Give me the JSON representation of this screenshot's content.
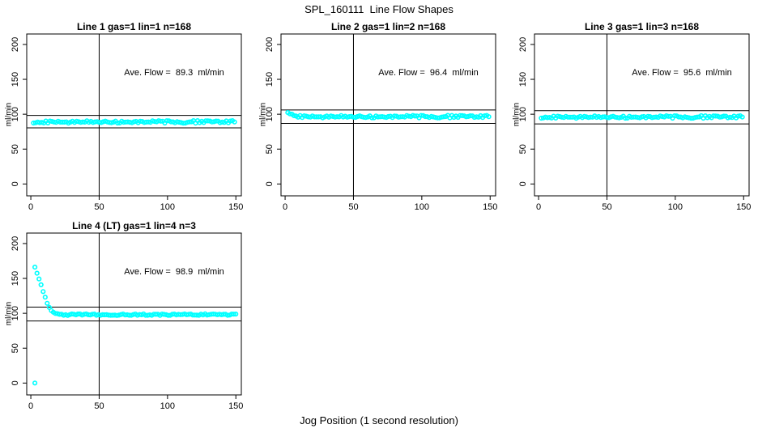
{
  "title": "SPL_160111  Line Flow Shapes",
  "colors": {
    "points": "#00ffff",
    "axis": "#000000",
    "background": "#ffffff"
  },
  "chart_data": {
    "type": "scatter",
    "title": "SPL_160111  Line Flow Shapes",
    "xlabel": "Jog Position (1 second resolution)",
    "ylabel": "ml/min",
    "x_ticks": [
      0,
      50,
      100,
      150
    ],
    "y_ticks": [
      0,
      50,
      100,
      150,
      200
    ],
    "xlim": [
      -3,
      154
    ],
    "ylim": [
      -17,
      215
    ],
    "vline_x": 50,
    "grid": false,
    "legend": "none",
    "point_color": "#00ffff",
    "panels": [
      {
        "title": "Line 1 gas=1 lin=1 n=168",
        "ave_flow": 89.3,
        "ave_flow_label": "Ave. Flow =  89.3  ml/min",
        "ref_lines": [
          98.23,
          80.37
        ],
        "series": [
          {
            "name": "flow-band",
            "profile": [
              [
                2,
                89
              ],
              [
                150,
                89
              ]
            ],
            "band": 2.0,
            "x_step": 1.5
          }
        ]
      },
      {
        "title": "Line 2 gas=1 lin=2 n=168",
        "ave_flow": 96.4,
        "ave_flow_label": "Ave. Flow =  96.4  ml/min",
        "ref_lines": [
          106.04,
          86.76
        ],
        "series": [
          {
            "name": "flow-band",
            "profile": [
              [
                2,
                104
              ],
              [
                4,
                101
              ],
              [
                7,
                98.5
              ],
              [
                10,
                97
              ],
              [
                15,
                96.5
              ],
              [
                150,
                96.5
              ]
            ],
            "band": 2.0,
            "x_step": 1.5
          }
        ]
      },
      {
        "title": "Line 3 gas=1 lin=3 n=168",
        "ave_flow": 95.6,
        "ave_flow_label": "Ave. Flow =  95.6  ml/min",
        "ref_lines": [
          105.16,
          86.04
        ],
        "series": [
          {
            "name": "flow-band",
            "profile": [
              [
                2,
                96
              ],
              [
                150,
                96
              ]
            ],
            "band": 2.0,
            "x_step": 1.5
          }
        ]
      },
      {
        "title": "Line 4 (LT) gas=1 lin=4 n=3",
        "ave_flow": 98.9,
        "ave_flow_label": "Ave. Flow =  98.9  ml/min",
        "ref_lines": [
          108.79,
          89.01
        ],
        "series": [
          {
            "name": "startup-decay-and-flat",
            "profile": [
              [
                3,
                166
              ],
              [
                4,
                161
              ],
              [
                5,
                155
              ],
              [
                6,
                149
              ],
              [
                7,
                143
              ],
              [
                8,
                137
              ],
              [
                9,
                131
              ],
              [
                10,
                125
              ],
              [
                11,
                120
              ],
              [
                12,
                115
              ],
              [
                13,
                111
              ],
              [
                14,
                107
              ],
              [
                15,
                104
              ],
              [
                16,
                102
              ],
              [
                17,
                100.5
              ],
              [
                18,
                99.5
              ],
              [
                20,
                98.5
              ],
              [
                25,
                98
              ],
              [
                150,
                98
              ]
            ],
            "band": 1.2,
            "x_step": 1.5
          },
          {
            "name": "outlier-point",
            "points": [
              [
                3,
                0
              ]
            ]
          }
        ]
      }
    ]
  }
}
